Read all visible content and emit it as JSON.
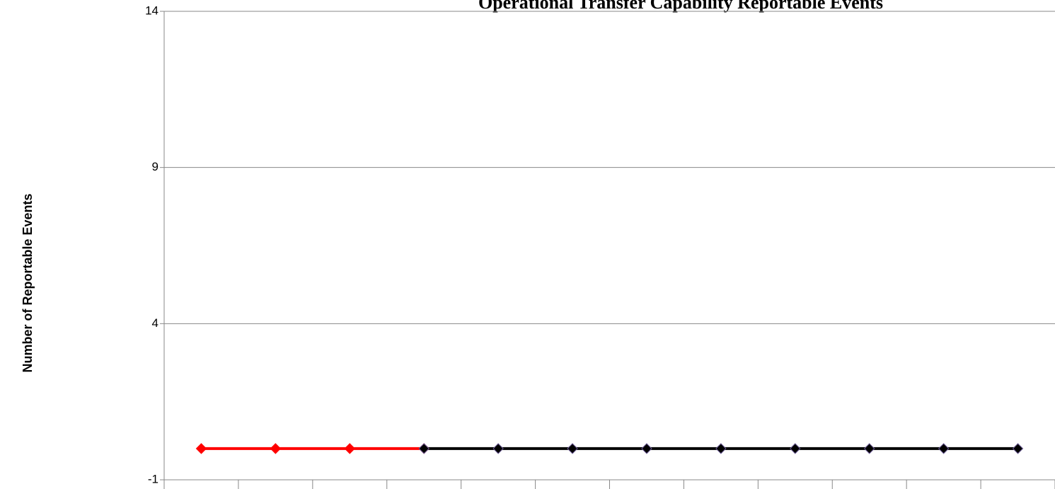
{
  "chart_data": {
    "type": "line",
    "title": "Operational Transfer Capability Reportable Events",
    "y_label": "Number of Reportable Events",
    "categories": [
      null,
      null,
      null,
      null,
      null,
      null,
      null,
      null,
      null,
      null,
      null,
      null
    ],
    "series": [
      {
        "name": null,
        "color": "#ff0000",
        "values": [
          0,
          0,
          0,
          0,
          null,
          null,
          null,
          null,
          null,
          null,
          null,
          null
        ]
      },
      {
        "name": null,
        "color": "#000000",
        "values": [
          null,
          null,
          null,
          0,
          0,
          0,
          0,
          0,
          0,
          0,
          0,
          0
        ]
      }
    ],
    "ylim": [
      -1,
      14
    ],
    "yticks": [
      -1,
      4,
      9,
      14
    ],
    "grid": true
  }
}
